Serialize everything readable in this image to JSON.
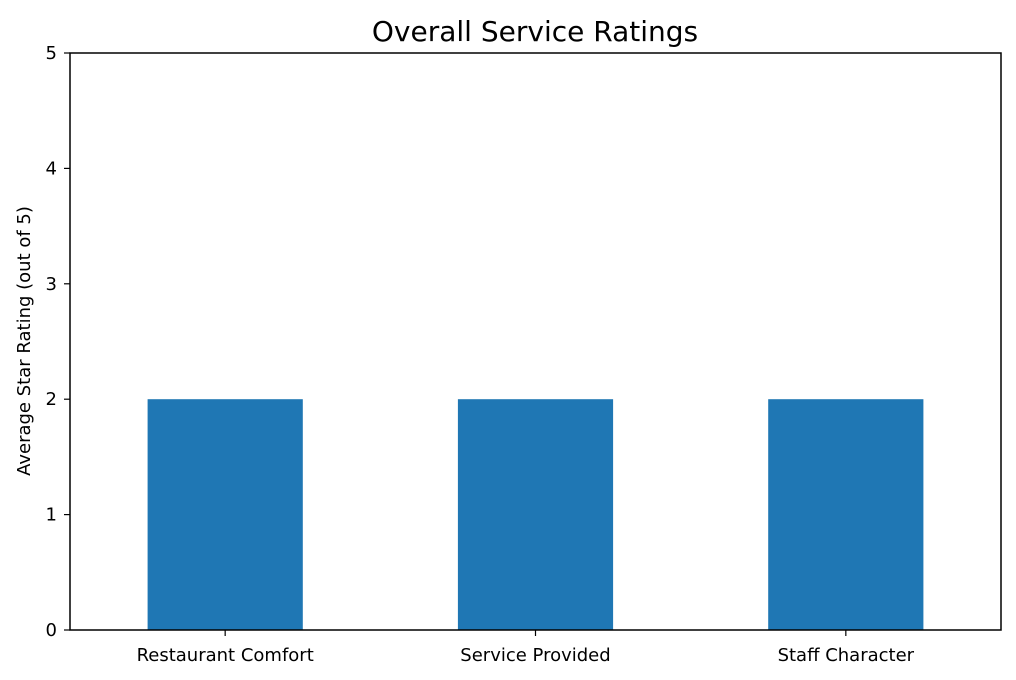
{
  "chart_data": {
    "type": "bar",
    "title": "Overall Service Ratings",
    "xlabel": "",
    "ylabel": "Average Star Rating (out of 5)",
    "categories": [
      "Restaurant Comfort",
      "Service Provided",
      "Staff Character"
    ],
    "values": [
      2,
      2,
      2
    ],
    "ylim": [
      0,
      5
    ],
    "yticks": [
      "0",
      "1",
      "2",
      "3",
      "4",
      "5"
    ],
    "grid": false,
    "bar_color": "#1f77b4"
  }
}
